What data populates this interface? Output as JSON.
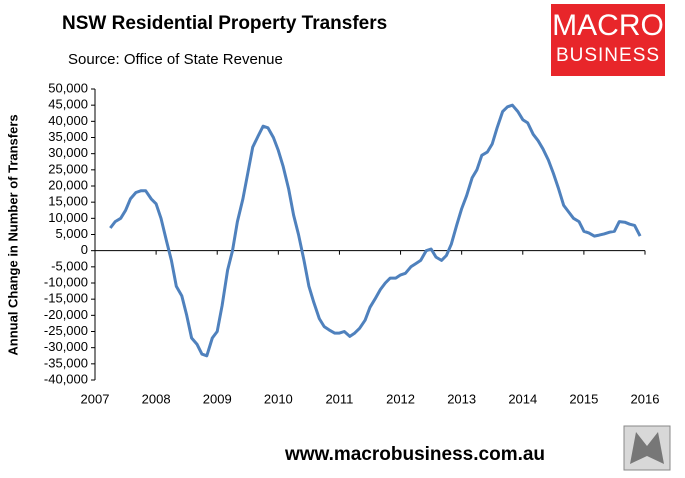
{
  "chart_data": {
    "type": "line",
    "title": "NSW Residential Property Transfers",
    "subtitle": "Source: Office of State Revenue",
    "y_label": "Annual Change in Number of Transfers",
    "x": [
      2007.25,
      2007.33,
      2007.42,
      2007.5,
      2007.58,
      2007.67,
      2007.75,
      2007.83,
      2007.92,
      2008,
      2008.08,
      2008.17,
      2008.25,
      2008.33,
      2008.42,
      2008.5,
      2008.58,
      2008.67,
      2008.75,
      2008.83,
      2008.92,
      2009,
      2009.08,
      2009.17,
      2009.25,
      2009.33,
      2009.42,
      2009.5,
      2009.58,
      2009.67,
      2009.75,
      2009.83,
      2009.92,
      2010,
      2010.08,
      2010.17,
      2010.25,
      2010.33,
      2010.42,
      2010.5,
      2010.58,
      2010.67,
      2010.75,
      2010.83,
      2010.92,
      2011,
      2011.08,
      2011.17,
      2011.25,
      2011.33,
      2011.42,
      2011.5,
      2011.58,
      2011.67,
      2011.75,
      2011.83,
      2011.92,
      2012,
      2012.08,
      2012.17,
      2012.25,
      2012.33,
      2012.42,
      2012.5,
      2012.58,
      2012.67,
      2012.75,
      2012.83,
      2012.92,
      2013,
      2013.08,
      2013.17,
      2013.25,
      2013.33,
      2013.42,
      2013.5,
      2013.58,
      2013.67,
      2013.75,
      2013.83,
      2013.92,
      2014,
      2014.08,
      2014.17,
      2014.25,
      2014.33,
      2014.42,
      2014.5,
      2014.58,
      2014.67,
      2014.75,
      2014.83,
      2014.92,
      2015,
      2015.08,
      2015.17,
      2015.25,
      2015.33,
      2015.42,
      2015.5,
      2015.58,
      2015.67,
      2015.75,
      2015.83,
      2015.92
    ],
    "series": [
      {
        "name": "Annual Change in Number of Transfers",
        "color": "#4f81bd",
        "values": [
          7000,
          9000,
          10000,
          12500,
          16000,
          18000,
          18500,
          18500,
          16000,
          14500,
          10000,
          3000,
          -3000,
          -11000,
          -14000,
          -20000,
          -27000,
          -29000,
          -32000,
          -32500,
          -27000,
          -25000,
          -17000,
          -6000,
          0,
          9000,
          16000,
          24000,
          32000,
          35500,
          38500,
          38000,
          35000,
          31000,
          26000,
          19000,
          11000,
          5000,
          -3000,
          -11000,
          -16000,
          -21000,
          -23500,
          -24500,
          -25500,
          -25500,
          -25000,
          -26500,
          -25500,
          -24000,
          -21500,
          -17500,
          -15000,
          -12000,
          -10000,
          -8500,
          -8500,
          -7500,
          -7000,
          -5000,
          -4000,
          -3000,
          0,
          500,
          -2000,
          -3000,
          -1500,
          2000,
          8000,
          13000,
          17000,
          22500,
          25000,
          29500,
          30500,
          33000,
          38000,
          43000,
          44500,
          45000,
          43000,
          40500,
          39500,
          36000,
          34000,
          31500,
          28000,
          24000,
          19500,
          14000,
          12000,
          10000,
          9000,
          6000,
          5500,
          4500,
          4800,
          5200,
          5700,
          6000,
          9000,
          8800,
          8200,
          7800,
          4500
        ]
      }
    ],
    "xlim": [
      2007,
      2016
    ],
    "xticks": [
      2007,
      2008,
      2009,
      2010,
      2011,
      2012,
      2013,
      2014,
      2015,
      2016
    ],
    "ylim": [
      -40000,
      50000
    ],
    "yticks": [
      {
        "value": -40000,
        "label": "-40,000"
      },
      {
        "value": -35000,
        "label": "-35,000"
      },
      {
        "value": -30000,
        "label": "-30,000"
      },
      {
        "value": -25000,
        "label": "-25,000"
      },
      {
        "value": -20000,
        "label": "-20,000"
      },
      {
        "value": -15000,
        "label": "-15,000"
      },
      {
        "value": -10000,
        "label": "-10,000"
      },
      {
        "value": -5000,
        "label": "-5,000"
      },
      0,
      {
        "value": 5000,
        "label": "5,000"
      },
      {
        "value": 10000,
        "label": "10,000"
      },
      {
        "value": 15000,
        "label": "15,000"
      },
      {
        "value": 20000,
        "label": "20,000"
      },
      {
        "value": 25000,
        "label": "25,000"
      },
      {
        "value": 30000,
        "label": "30,000"
      },
      {
        "value": 35000,
        "label": "35,000"
      },
      {
        "value": 40000,
        "label": "40,000"
      },
      {
        "value": 45000,
        "label": "45,000"
      },
      {
        "value": 50000,
        "label": "50,000"
      }
    ],
    "grid": false
  },
  "branding": {
    "logo_top": "MACRO",
    "logo_bottom": "BUSINESS",
    "url": "www.macrobusiness.com.au"
  }
}
